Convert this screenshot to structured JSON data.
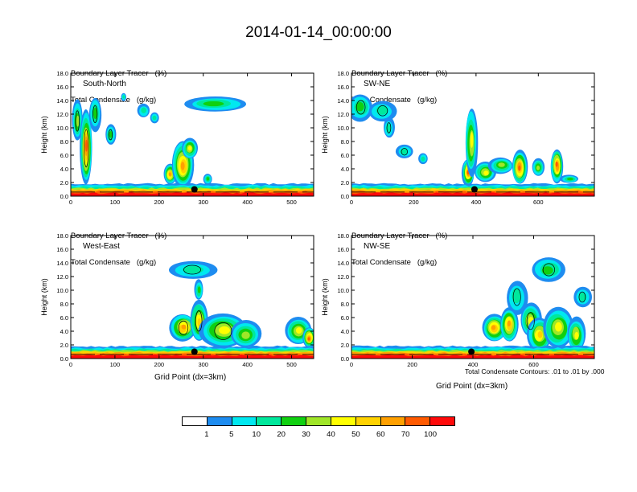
{
  "main_title": "2014-01-14_00:00:00",
  "panel_caption": {
    "line1": "Boundary Layer Tracer   (%)",
    "line2": "Total Condensate   (g/kg)"
  },
  "x_axis_label": "Grid Point (dx=3km)",
  "contour_note": "Total Condensate Contours: .01 to .01 by .000",
  "colorbar": {
    "colors": [
      "#ffffff",
      "#1e8cf0",
      "#00e8f0",
      "#00e89c",
      "#10d010",
      "#a0e628",
      "#ffff00",
      "#ffd200",
      "#ffa000",
      "#ff5a00",
      "#ff0a0a"
    ],
    "labels": [
      "1",
      "5",
      "10",
      "20",
      "30",
      "40",
      "50",
      "60",
      "70",
      "100"
    ]
  },
  "chart_data": [
    {
      "type": "heatmap",
      "name": "South-North",
      "title": "South-North",
      "ylabel": "Height (km)",
      "xlabel": "",
      "xlim": [
        0,
        550
      ],
      "ylim": [
        0,
        18
      ],
      "xticks": [
        "0",
        "100",
        "200",
        "300",
        "400",
        "500"
      ],
      "yticks": [
        "0.0",
        "2.0",
        "4.0",
        "6.0",
        "8.0",
        "10.0",
        "12.0",
        "14.0",
        "16.0",
        "18.0"
      ],
      "marker": {
        "x": 280,
        "y": 1.0
      }
    },
    {
      "type": "heatmap",
      "name": "SW-NE",
      "title": "SW-NE",
      "ylabel": "Height (km)",
      "xlabel": "",
      "xlim": [
        0,
        780
      ],
      "ylim": [
        0,
        18
      ],
      "xticks": [
        "0",
        "200",
        "400",
        "600"
      ],
      "yticks": [
        "0.0",
        "2.0",
        "4.0",
        "6.0",
        "8.0",
        "10.0",
        "12.0",
        "14.0",
        "16.0",
        "18.0"
      ],
      "marker": {
        "x": 395,
        "y": 1.0
      }
    },
    {
      "type": "heatmap",
      "name": "West-East",
      "title": "West-East",
      "ylabel": "Height (km)",
      "xlabel": "Grid Point (dx=3km)",
      "xlim": [
        0,
        550
      ],
      "ylim": [
        0,
        18
      ],
      "xticks": [
        "0",
        "100",
        "200",
        "300",
        "400",
        "500"
      ],
      "yticks": [
        "0.0",
        "2.0",
        "4.0",
        "6.0",
        "8.0",
        "10.0",
        "12.0",
        "14.0",
        "16.0",
        "18.0"
      ],
      "marker": {
        "x": 280,
        "y": 1.0
      }
    },
    {
      "type": "heatmap",
      "name": "NW-SE",
      "title": "NW-SE",
      "ylabel": "Height (km)",
      "xlabel": "Grid Point (dx=3km)",
      "xlim": [
        0,
        800
      ],
      "ylim": [
        0,
        18
      ],
      "xticks": [
        "0",
        "200",
        "400",
        "600"
      ],
      "yticks": [
        "0.0",
        "2.0",
        "4.0",
        "6.0",
        "8.0",
        "10.0",
        "12.0",
        "14.0",
        "16.0",
        "18.0"
      ],
      "marker": {
        "x": 395,
        "y": 1.0
      }
    }
  ]
}
